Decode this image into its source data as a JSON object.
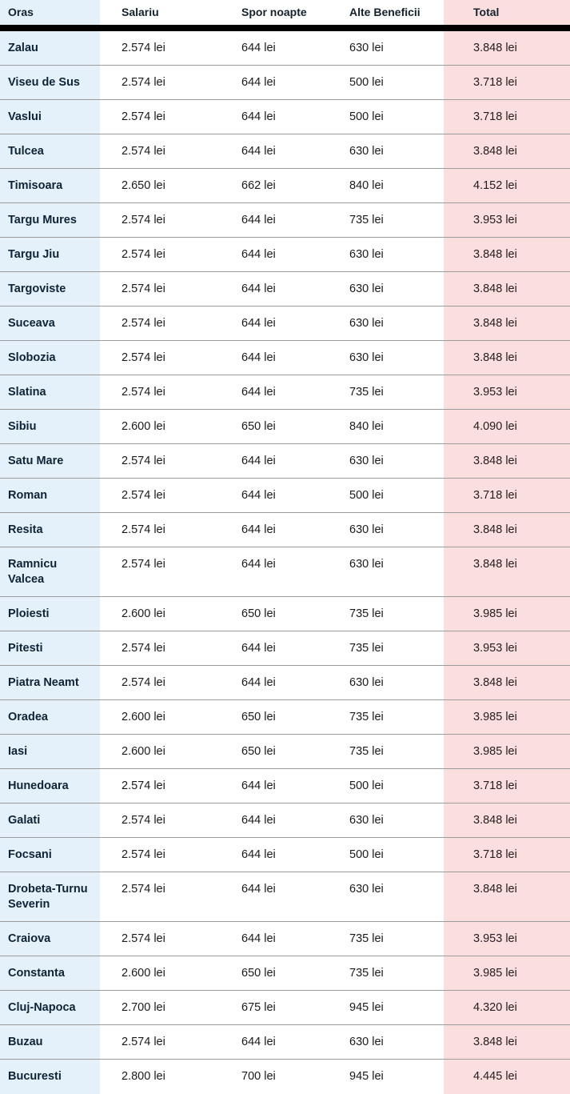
{
  "table": {
    "columns": [
      {
        "key": "oras",
        "label": "Oras"
      },
      {
        "key": "salariu",
        "label": "Salariu"
      },
      {
        "key": "spor",
        "label": "Spor noapte"
      },
      {
        "key": "alte",
        "label": "Alte Beneficii"
      },
      {
        "key": "total",
        "label": "Total"
      }
    ],
    "rows": [
      {
        "oras": "Zalau",
        "salariu": "2.574 lei",
        "spor": "644 lei",
        "alte": "630 lei",
        "total": "3.848 lei"
      },
      {
        "oras": "Viseu de Sus",
        "salariu": "2.574 lei",
        "spor": "644 lei",
        "alte": "500 lei",
        "total": "3.718 lei"
      },
      {
        "oras": "Vaslui",
        "salariu": "2.574 lei",
        "spor": "644 lei",
        "alte": "500 lei",
        "total": "3.718 lei"
      },
      {
        "oras": "Tulcea",
        "salariu": "2.574 lei",
        "spor": "644 lei",
        "alte": "630 lei",
        "total": "3.848 lei"
      },
      {
        "oras": "Timisoara",
        "salariu": "2.650 lei",
        "spor": "662 lei",
        "alte": "840 lei",
        "total": "4.152 lei"
      },
      {
        "oras": "Targu Mures",
        "salariu": "2.574 lei",
        "spor": "644 lei",
        "alte": "735 lei",
        "total": "3.953 lei"
      },
      {
        "oras": "Targu Jiu",
        "salariu": "2.574 lei",
        "spor": "644 lei",
        "alte": "630 lei",
        "total": "3.848 lei"
      },
      {
        "oras": "Targoviste",
        "salariu": "2.574 lei",
        "spor": "644 lei",
        "alte": "630 lei",
        "total": "3.848 lei"
      },
      {
        "oras": "Suceava",
        "salariu": "2.574 lei",
        "spor": "644 lei",
        "alte": "630 lei",
        "total": "3.848 lei"
      },
      {
        "oras": "Slobozia",
        "salariu": "2.574 lei",
        "spor": "644 lei",
        "alte": "630 lei",
        "total": "3.848 lei"
      },
      {
        "oras": "Slatina",
        "salariu": "2.574 lei",
        "spor": "644 lei",
        "alte": "735 lei",
        "total": "3.953 lei"
      },
      {
        "oras": "Sibiu",
        "salariu": "2.600 lei",
        "spor": "650 lei",
        "alte": "840 lei",
        "total": "4.090 lei"
      },
      {
        "oras": "Satu Mare",
        "salariu": "2.574 lei",
        "spor": "644 lei",
        "alte": "630 lei",
        "total": "3.848 lei"
      },
      {
        "oras": "Roman",
        "salariu": "2.574 lei",
        "spor": "644 lei",
        "alte": "500 lei",
        "total": "3.718 lei"
      },
      {
        "oras": "Resita",
        "salariu": "2.574 lei",
        "spor": "644 lei",
        "alte": "630 lei",
        "total": "3.848 lei"
      },
      {
        "oras": "Ramnicu Valcea",
        "salariu": "2.574 lei",
        "spor": "644 lei",
        "alte": "630 lei",
        "total": "3.848 lei"
      },
      {
        "oras": "Ploiesti",
        "salariu": "2.600 lei",
        "spor": "650 lei",
        "alte": "735 lei",
        "total": "3.985 lei"
      },
      {
        "oras": "Pitesti",
        "salariu": "2.574 lei",
        "spor": "644 lei",
        "alte": "735 lei",
        "total": "3.953 lei"
      },
      {
        "oras": "Piatra Neamt",
        "salariu": "2.574 lei",
        "spor": "644 lei",
        "alte": "630 lei",
        "total": "3.848 lei"
      },
      {
        "oras": "Oradea",
        "salariu": "2.600 lei",
        "spor": "650 lei",
        "alte": "735 lei",
        "total": "3.985 lei"
      },
      {
        "oras": "Iasi",
        "salariu": "2.600 lei",
        "spor": "650 lei",
        "alte": "735 lei",
        "total": "3.985 lei"
      },
      {
        "oras": "Hunedoara",
        "salariu": "2.574 lei",
        "spor": "644 lei",
        "alte": "500 lei",
        "total": "3.718 lei"
      },
      {
        "oras": "Galati",
        "salariu": "2.574 lei",
        "spor": "644 lei",
        "alte": "630 lei",
        "total": "3.848 lei"
      },
      {
        "oras": "Focsani",
        "salariu": "2.574 lei",
        "spor": "644 lei",
        "alte": "500 lei",
        "total": "3.718 lei"
      },
      {
        "oras": "Drobeta-Turnu Severin",
        "salariu": "2.574 lei",
        "spor": "644 lei",
        "alte": "630 lei",
        "total": "3.848 lei"
      },
      {
        "oras": "Craiova",
        "salariu": "2.574 lei",
        "spor": "644 lei",
        "alte": "735 lei",
        "total": "3.953 lei"
      },
      {
        "oras": "Constanta",
        "salariu": "2.600 lei",
        "spor": "650 lei",
        "alte": "735 lei",
        "total": "3.985 lei"
      },
      {
        "oras": "Cluj-Napoca",
        "salariu": "2.700 lei",
        "spor": "675 lei",
        "alte": "945 lei",
        "total": "4.320 lei"
      },
      {
        "oras": "Buzau",
        "salariu": "2.574 lei",
        "spor": "644 lei",
        "alte": "630 lei",
        "total": "3.848 lei"
      },
      {
        "oras": "Bucuresti",
        "salariu": "2.800 lei",
        "spor": "700 lei",
        "alte": "945 lei",
        "total": "4.445 lei"
      }
    ]
  },
  "colors": {
    "city_column_bg": "#e4f1fb",
    "total_column_bg": "#fbdede",
    "header_rule": "#000000",
    "row_divider": "#9b9b9b",
    "city_text": "#0e2435",
    "value_text": "#1a1a1a"
  }
}
